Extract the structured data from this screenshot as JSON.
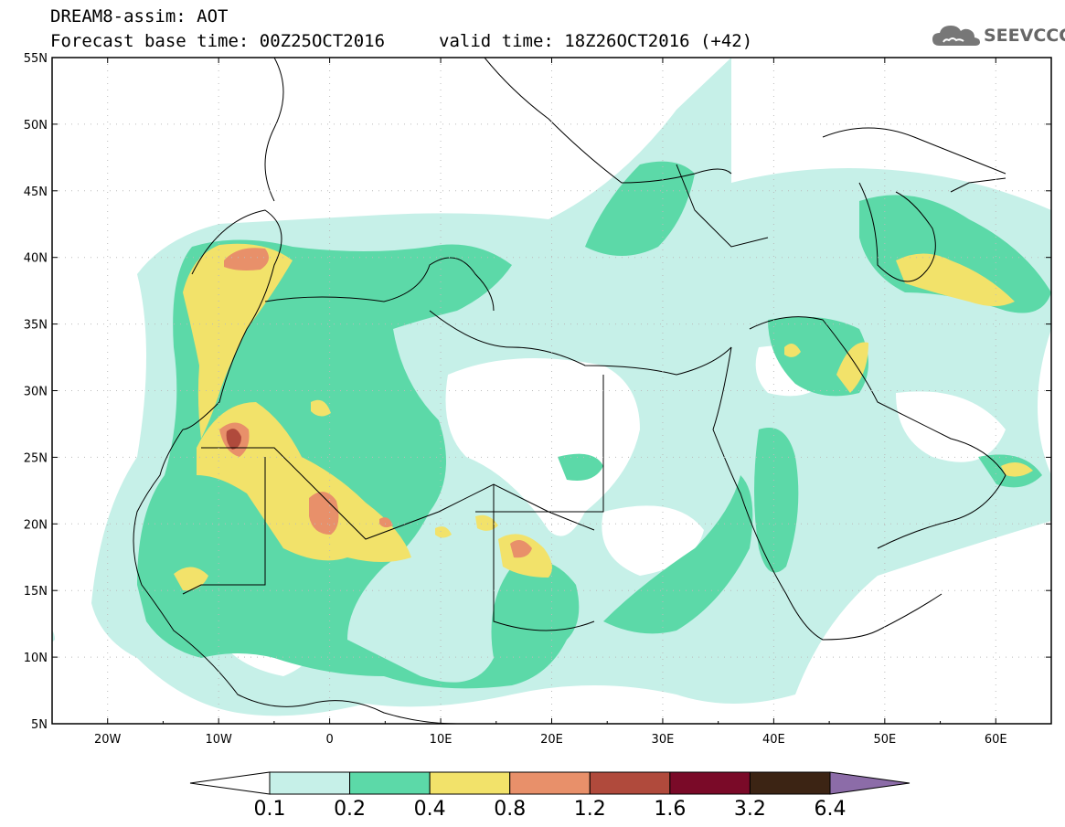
{
  "header": {
    "title_line1": "DREAM8-assim: AOT",
    "title_line2": "Forecast base time: 00Z25OCT2016",
    "valid_time": "valid time: 18Z26OCT2016 (+42)"
  },
  "logo": {
    "text": "SEEVCCC",
    "icon": "cloud-icon"
  },
  "map": {
    "lat_labels": [
      "55N",
      "50N",
      "45N",
      "40N",
      "35N",
      "30N",
      "25N",
      "20N",
      "15N",
      "10N",
      "5N"
    ],
    "lon_labels": [
      "20W",
      "10W",
      "0",
      "10E",
      "20E",
      "30E",
      "40E",
      "50E",
      "60E"
    ],
    "lat_range": [
      5,
      55
    ],
    "lon_range": [
      -25,
      65
    ],
    "grid": true
  },
  "colorbar": {
    "levels": [
      "0.1",
      "0.2",
      "0.4",
      "0.8",
      "1.2",
      "1.6",
      "3.2",
      "6.4"
    ],
    "colors": [
      "#ffffff",
      "#c6f0e8",
      "#5cd9a8",
      "#f2e26a",
      "#e8906a",
      "#b04a3c",
      "#7a0a28",
      "#3c2414",
      "#8c6ca8"
    ]
  }
}
